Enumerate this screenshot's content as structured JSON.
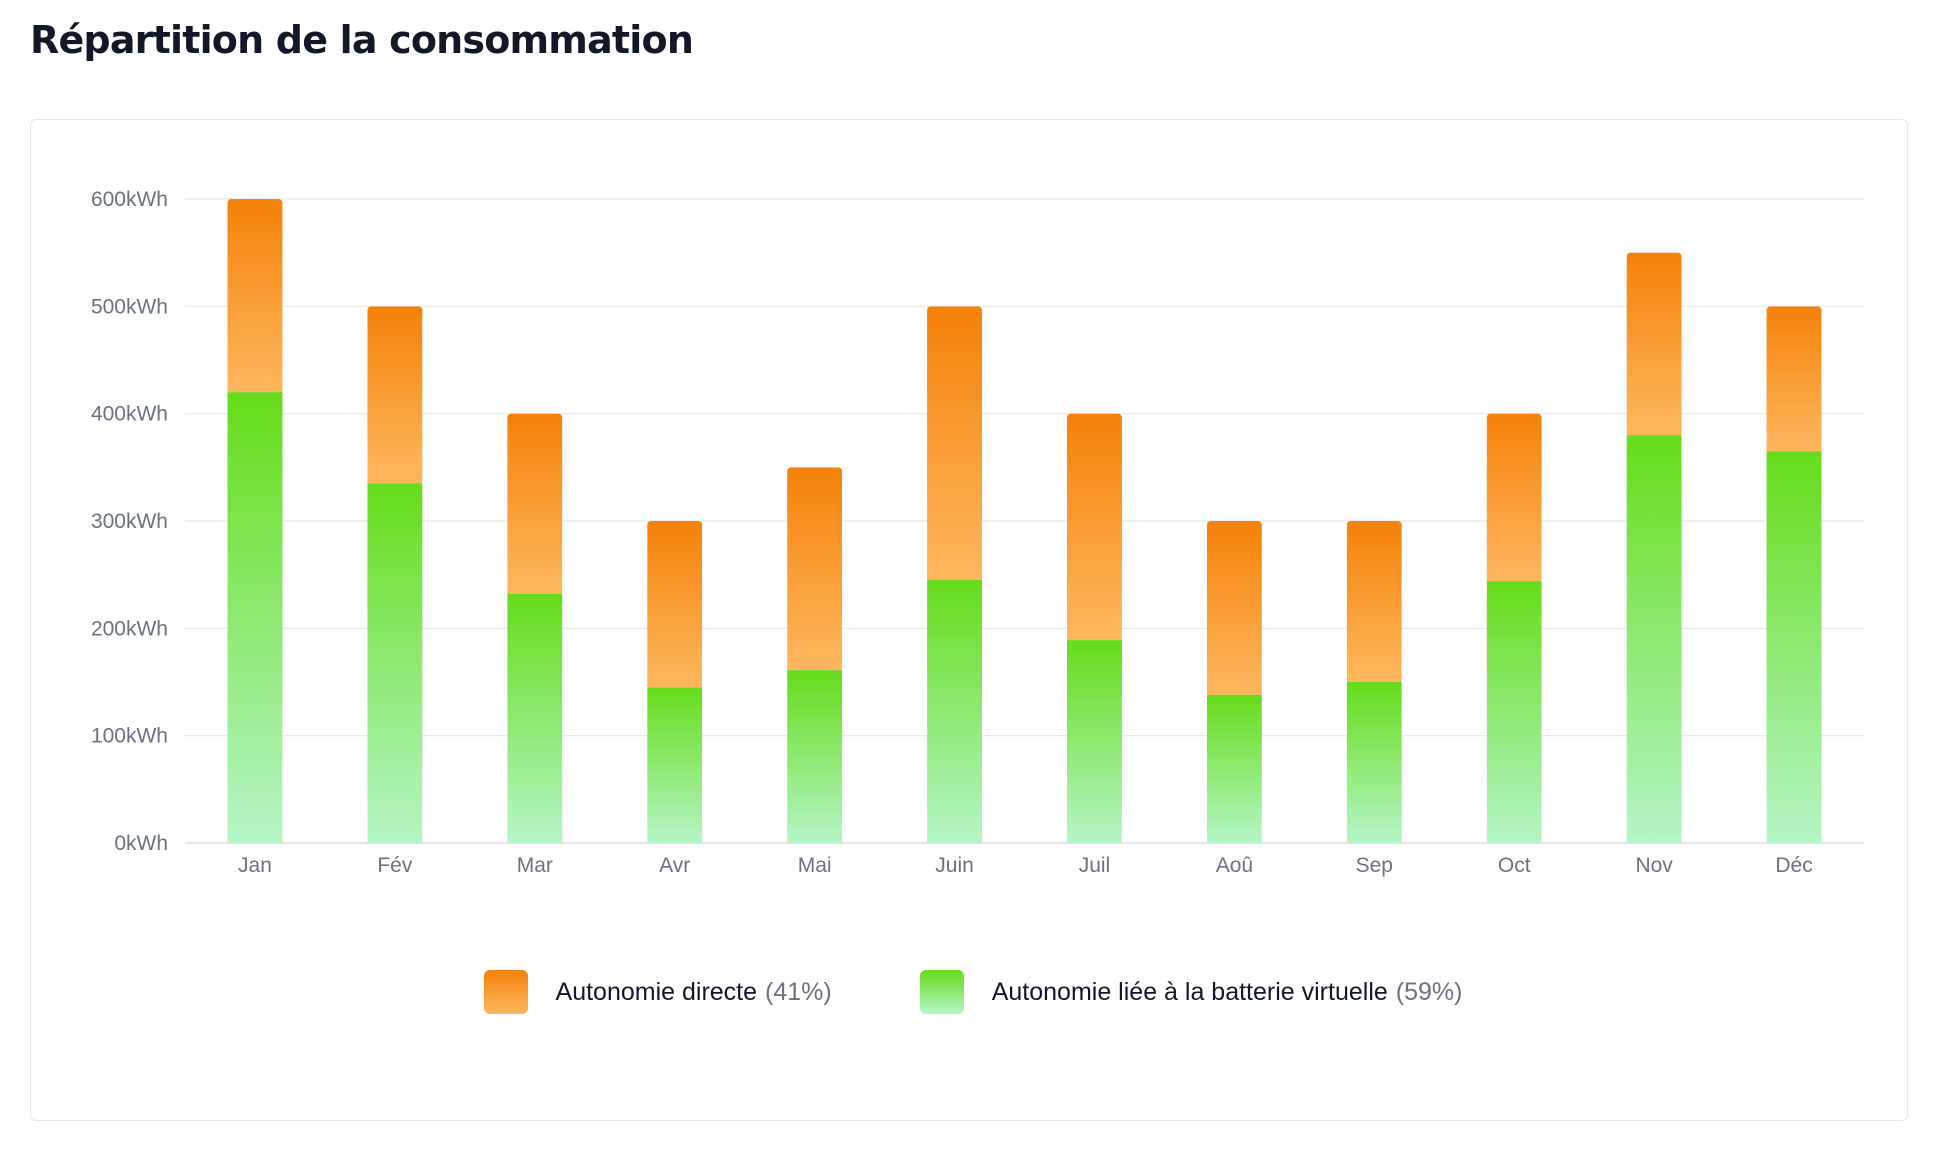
{
  "title": "Répartition de la consommation",
  "chart_data": {
    "type": "bar",
    "stacked": true,
    "categories": [
      "Jan",
      "Fév",
      "Mar",
      "Avr",
      "Mai",
      "Juin",
      "Juil",
      "Aoû",
      "Sep",
      "Oct",
      "Nov",
      "Déc"
    ],
    "series": [
      {
        "name": "Autonomie liée à la batterie virtuelle",
        "percent": "(59%)",
        "colors": [
          "#66dc1a",
          "#b6f5c8"
        ],
        "values": [
          420,
          335,
          232,
          145,
          161,
          245,
          189,
          138,
          150,
          244,
          380,
          365
        ]
      },
      {
        "name": "Autonomie directe",
        "percent": "(41%)",
        "colors": [
          "#f5820a",
          "#fdb75f"
        ],
        "values": [
          180,
          165,
          168,
          155,
          189,
          255,
          211,
          162,
          150,
          156,
          170,
          135
        ]
      }
    ],
    "yticks": [
      "0kWh",
      "100kWh",
      "200kWh",
      "300kWh",
      "400kWh",
      "500kWh",
      "600kWh"
    ],
    "ylim": [
      0,
      600
    ],
    "grid": true,
    "legend_position": "bottom-center",
    "xlabel": "",
    "ylabel": ""
  }
}
